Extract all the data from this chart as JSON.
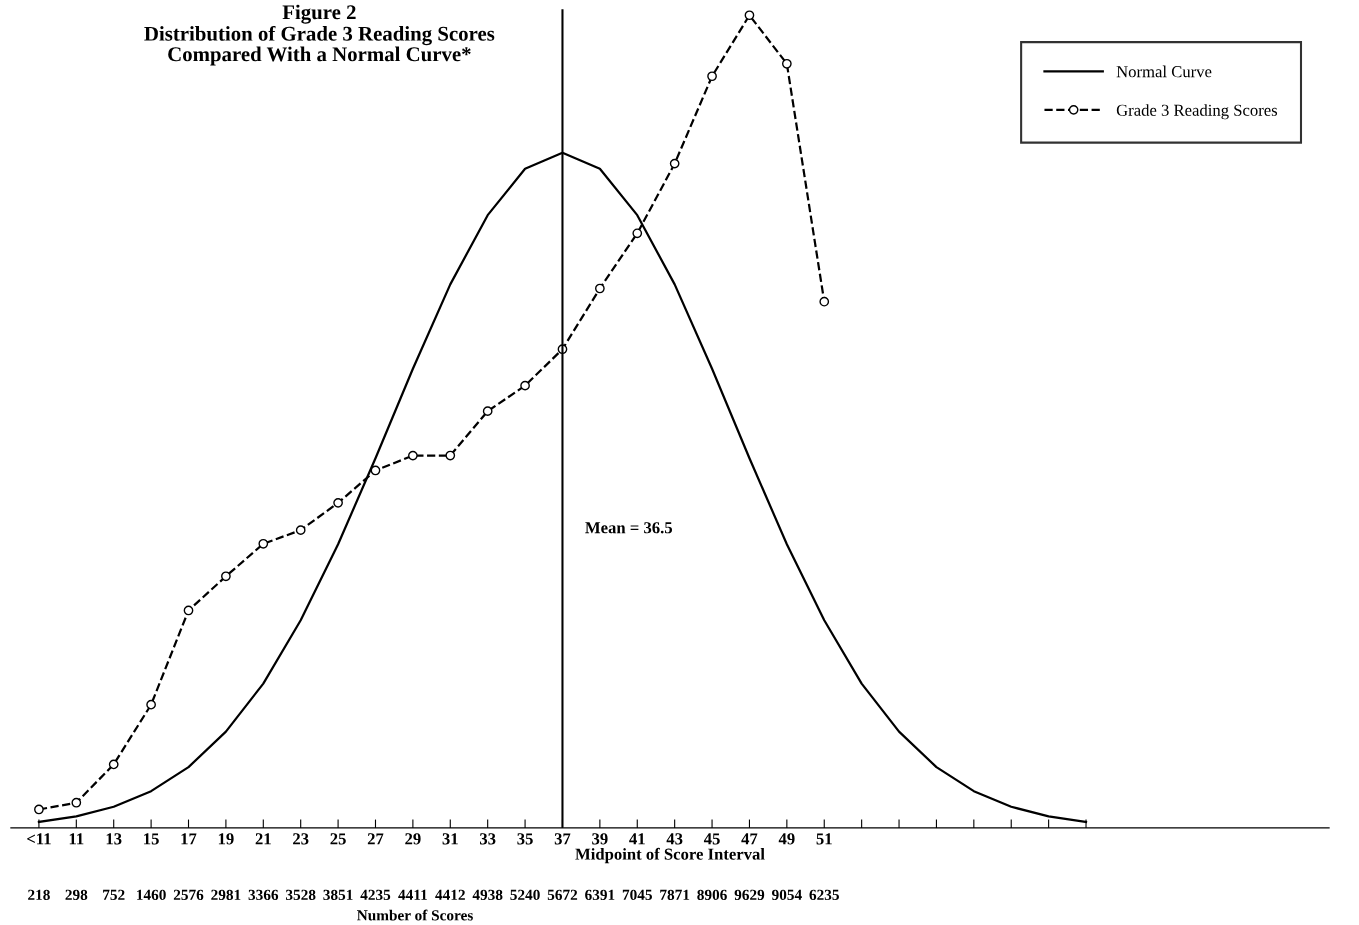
{
  "chart_data": {
    "type": "line",
    "title": "Figure 2",
    "subtitle": "Distribution of Grade 3 Reading Scores\nCompared With a Normal Curve*",
    "xlabel": "Midpoint of Score Interval",
    "categories": [
      "<11",
      "11",
      "13",
      "15",
      "17",
      "19",
      "21",
      "23",
      "25",
      "27",
      "29",
      "31",
      "33",
      "35",
      "37",
      "39",
      "41",
      "43",
      "45",
      "47",
      "49",
      "51",
      null,
      null,
      null,
      null,
      null,
      null,
      null
    ],
    "ylim": [
      0,
      9700
    ],
    "tick_labels": "x",
    "grid": false,
    "legend": "top right",
    "series": [
      {
        "name": "Normal Curve",
        "color": "#000000",
        "line_style": "solid",
        "marker": "none",
        "values": [
          71,
          137,
          250,
          435,
          720,
          1140,
          1710,
          2460,
          3360,
          4380,
          5440,
          6440,
          7260,
          7810,
          8000,
          7810,
          7260,
          6440,
          5440,
          4380,
          3360,
          2460,
          1710,
          1140,
          720,
          435,
          250,
          137,
          71
        ]
      },
      {
        "name": "Grade 3 Reading Scores",
        "color": "#000000",
        "line_style": "dashed",
        "marker": "circle",
        "values": [
          218,
          298,
          752,
          1460,
          2576,
          2981,
          3366,
          3528,
          3851,
          4235,
          4411,
          4412,
          4938,
          5240,
          5672,
          6391,
          7045,
          7871,
          8906,
          9629,
          9054,
          6235,
          null,
          null,
          null,
          null,
          null,
          null,
          null
        ],
        "value_labels": [
          "218",
          "298",
          "752",
          "1460",
          "2576",
          "2981",
          "3366",
          "3528",
          "3851",
          "4235",
          "4411",
          "4412",
          "4938",
          "5240",
          "5672",
          "6391",
          "7045",
          "7871",
          "8906",
          "9629",
          "9054",
          "6235",
          null,
          null,
          null,
          null,
          null,
          null,
          null
        ]
      }
    ],
    "ref_lines": [
      {
        "axis": "x",
        "value": "37",
        "label": "Mean = 36.5",
        "color": "#000000",
        "line_style": "solid"
      }
    ],
    "annotations": [
      "Number of Scores"
    ]
  }
}
